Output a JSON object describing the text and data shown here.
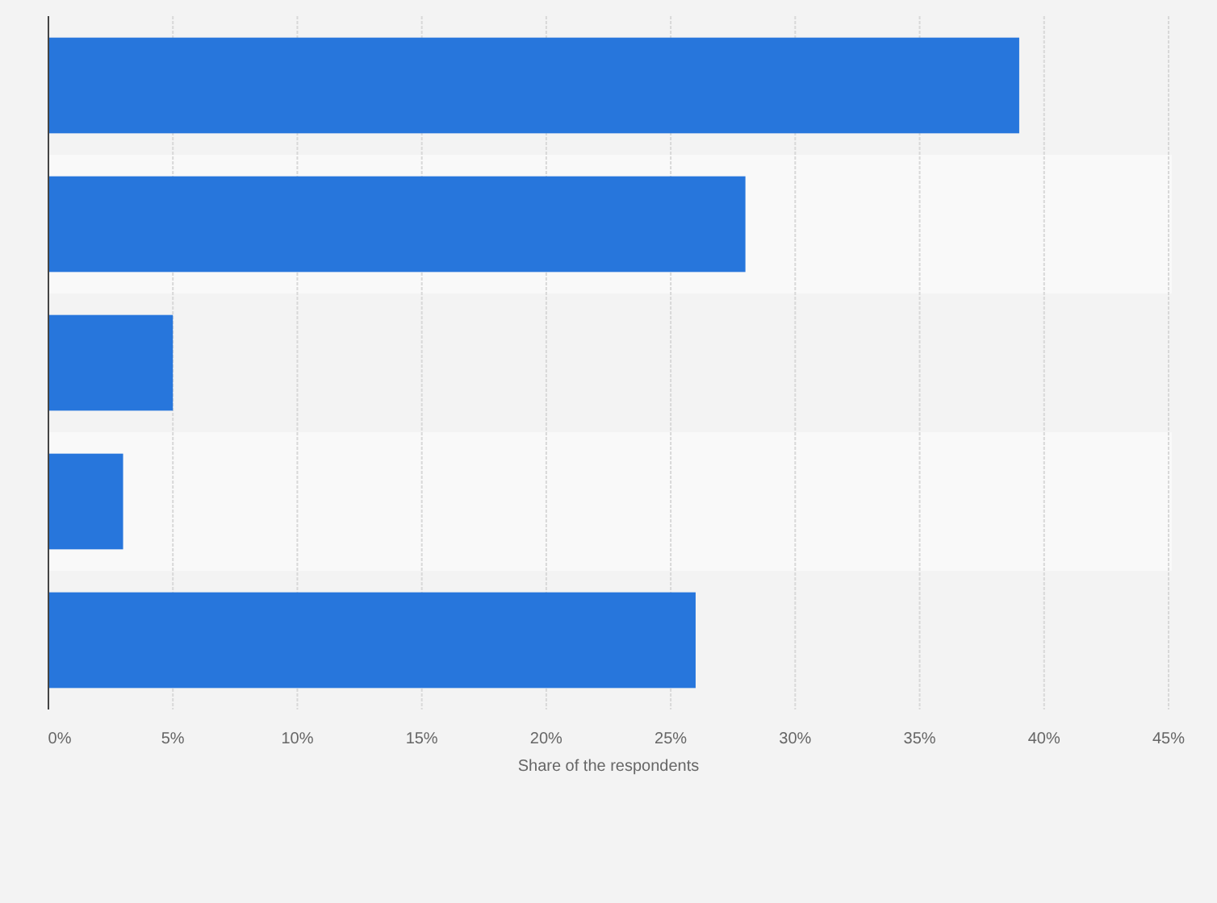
{
  "chart_data": {
    "type": "bar",
    "orientation": "horizontal",
    "xlabel": "Share of the respondents",
    "categories": [
      null,
      null,
      null,
      null,
      null
    ],
    "values": [
      39,
      28,
      5,
      3,
      26
    ],
    "color": "#2776dc",
    "xlim": [
      0,
      45
    ],
    "xticks": [
      {
        "value": 0,
        "label": "0%"
      },
      {
        "value": 5,
        "label": "5%"
      },
      {
        "value": 10,
        "label": "10%"
      },
      {
        "value": 15,
        "label": "15%"
      },
      {
        "value": 20,
        "label": "20%"
      },
      {
        "value": 25,
        "label": "25%"
      },
      {
        "value": 30,
        "label": "30%"
      },
      {
        "value": 35,
        "label": "35%"
      },
      {
        "value": 40,
        "label": "40%"
      },
      {
        "value": 45,
        "label": "45%"
      }
    ],
    "grid": "x"
  }
}
